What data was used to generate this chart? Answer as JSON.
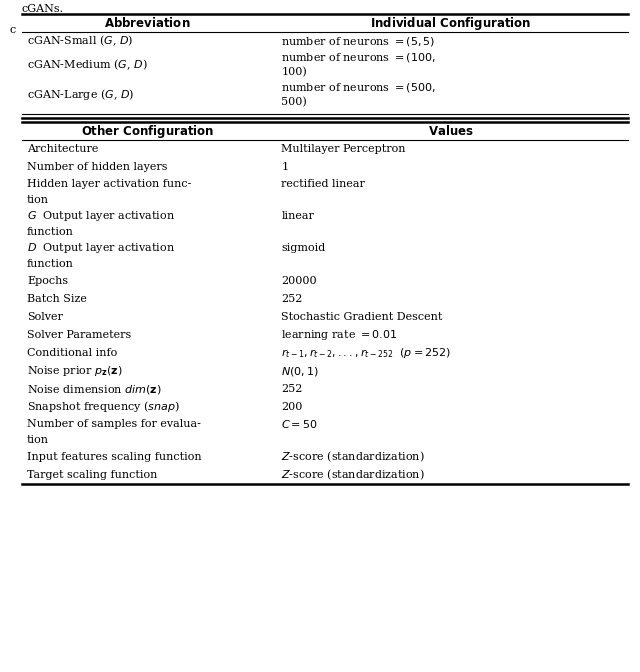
{
  "title_text": "cGANs.",
  "fig_label": "c",
  "fig_width": 6.4,
  "fig_height": 6.72,
  "background_color": "#ffffff",
  "top_table": {
    "headers": [
      "Abbreviation",
      "Individual Configuration"
    ],
    "rows": [
      [
        "cGAN-Small ($G$, $D$)",
        "number of neurons $= (5, 5)$"
      ],
      [
        "cGAN-Medium ($G$, $D$)",
        "number of neurons $= (100,$\n100)"
      ],
      [
        "cGAN-Large ($G$, $D$)",
        "number of neurons $= (500,$\n500)"
      ]
    ]
  },
  "bottom_table": {
    "headers": [
      "Other Configuration",
      "Values"
    ],
    "rows": [
      [
        "Architecture",
        "Multilayer Perceptron"
      ],
      [
        "Number of hidden layers",
        "1"
      ],
      [
        "Hidden layer activation func-\ntion",
        "rectified linear"
      ],
      [
        "$G$  Output layer activation\nfunction",
        "linear"
      ],
      [
        "$D$  Output layer activation\nfunction",
        "sigmoid"
      ],
      [
        "Epochs",
        "20000"
      ],
      [
        "Batch Size",
        "252"
      ],
      [
        "Solver",
        "Stochastic Gradient Descent"
      ],
      [
        "Solver Parameters",
        "learning rate $= 0.01$"
      ],
      [
        "Conditional info",
        "$r_{t-1}, r_{t-2}, ..., r_{t-252}$  $(p = 252)$"
      ],
      [
        "Noise prior $p_{\\mathbf{z}}(\\mathbf{z})$",
        "$N(0, 1)$"
      ],
      [
        "Noise dimension $dim(\\mathbf{z})$",
        "252"
      ],
      [
        "Snapshot frequency ($snap$)",
        "200"
      ],
      [
        "Number of samples for evalua-\ntion",
        "$C = 50$"
      ],
      [
        "Input features scaling function",
        "$Z$-score (standardization)"
      ],
      [
        "Target scaling function",
        "$Z$-score (standardization)"
      ]
    ]
  }
}
